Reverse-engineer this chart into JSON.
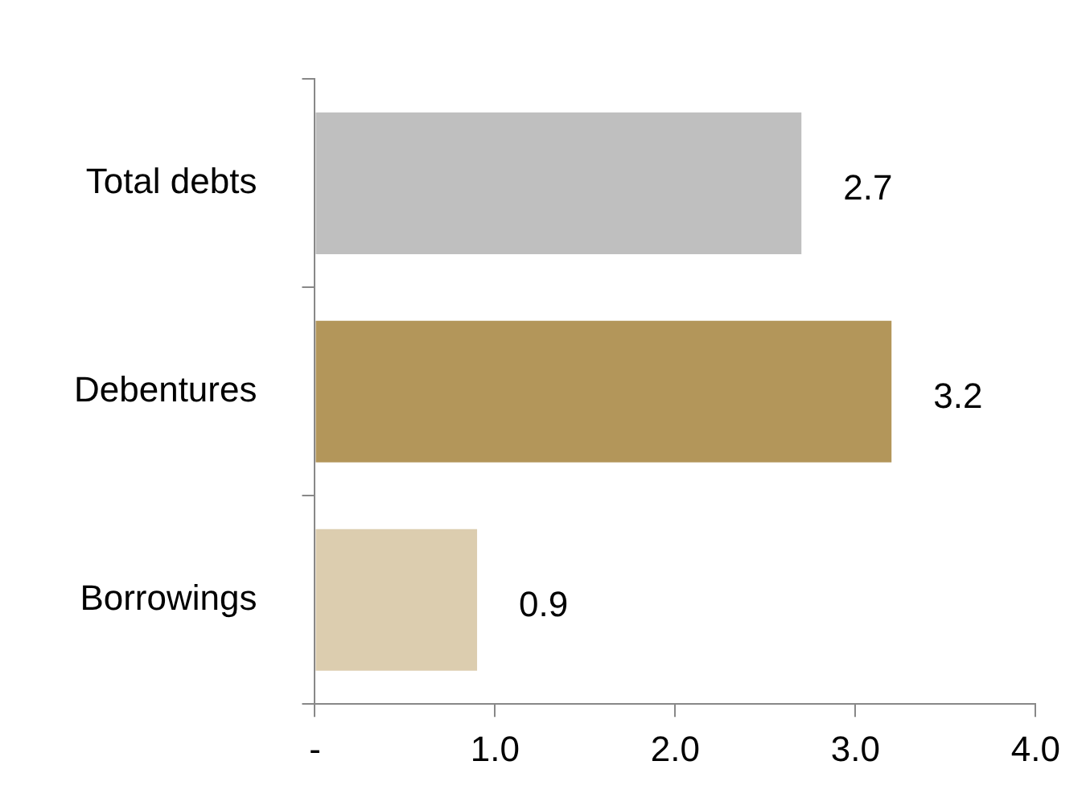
{
  "chart_data": {
    "type": "bar",
    "orientation": "horizontal",
    "categories": [
      "Total debts",
      "Debentures",
      "Borrowings"
    ],
    "values": [
      2.7,
      3.2,
      0.9
    ],
    "colors": [
      "#bfbfbf",
      "#b3965a",
      "#dccdaf"
    ],
    "xlim": [
      0,
      4
    ],
    "xticks": [
      {
        "value": 0,
        "label": "-"
      },
      {
        "value": 1,
        "label": "1.0"
      },
      {
        "value": 2,
        "label": "2.0"
      },
      {
        "value": 3,
        "label": "3.0"
      },
      {
        "value": 4,
        "label": "4.0"
      }
    ],
    "data_labels": true
  }
}
